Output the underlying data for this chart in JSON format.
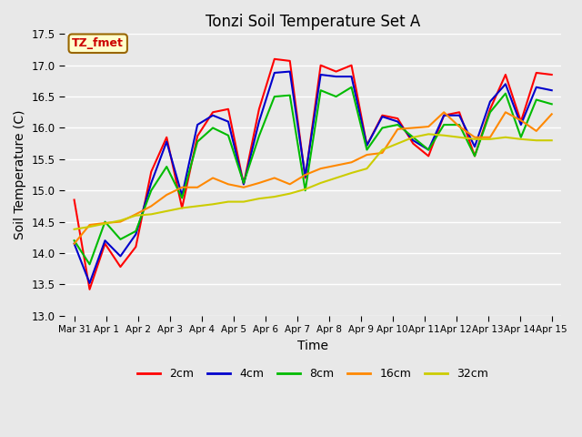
{
  "title": "Tonzi Soil Temperature Set A",
  "xlabel": "Time",
  "ylabel": "Soil Temperature (C)",
  "ylim": [
    13.0,
    17.5
  ],
  "annotation_text": "TZ_fmet",
  "annotation_bg": "#ffffcc",
  "annotation_border": "#996600",
  "annotation_text_color": "#cc0000",
  "bg_color": "#e8e8e8",
  "grid_color": "white",
  "series_order": [
    "2cm",
    "4cm",
    "8cm",
    "16cm",
    "32cm"
  ],
  "series": {
    "2cm": {
      "color": "#ff0000",
      "lw": 1.5
    },
    "4cm": {
      "color": "#0000cc",
      "lw": 1.5
    },
    "8cm": {
      "color": "#00bb00",
      "lw": 1.5
    },
    "16cm": {
      "color": "#ff8800",
      "lw": 1.5
    },
    "32cm": {
      "color": "#cccc00",
      "lw": 1.5
    }
  },
  "x_tick_labels": [
    "Mar 31",
    "Apr 1",
    "Apr 2",
    "Apr 3",
    "Apr 4",
    "Apr 5",
    "Apr 6",
    "Apr 7",
    "Apr 8",
    "Apr 9",
    "Apr 10",
    "Apr 11",
    "Apr 12",
    "Apr 13",
    "Apr 14",
    "Apr 15"
  ],
  "data_2cm": [
    14.85,
    13.42,
    14.15,
    13.78,
    14.1,
    15.3,
    15.85,
    14.72,
    15.87,
    16.25,
    16.3,
    15.1,
    16.3,
    17.1,
    17.07,
    15.2,
    17.0,
    16.9,
    17.0,
    15.72,
    16.2,
    16.15,
    15.75,
    15.55,
    16.2,
    16.25,
    15.55,
    16.3,
    16.85,
    16.1,
    16.88,
    16.85
  ],
  "data_4cm": [
    14.15,
    13.52,
    14.2,
    13.95,
    14.3,
    15.12,
    15.78,
    14.92,
    16.05,
    16.2,
    16.1,
    15.1,
    16.1,
    16.88,
    16.9,
    15.22,
    16.85,
    16.82,
    16.82,
    15.72,
    16.18,
    16.1,
    15.8,
    15.65,
    16.2,
    16.2,
    15.7,
    16.42,
    16.7,
    16.05,
    16.65,
    16.6
  ],
  "data_8cm": [
    14.2,
    13.82,
    14.5,
    14.22,
    14.35,
    15.0,
    15.38,
    14.88,
    15.78,
    16.0,
    15.88,
    15.12,
    15.87,
    16.5,
    16.52,
    15.0,
    16.6,
    16.5,
    16.65,
    15.65,
    16.0,
    16.05,
    15.85,
    15.65,
    16.05,
    16.05,
    15.55,
    16.25,
    16.55,
    15.85,
    16.45,
    16.38
  ],
  "data_16cm": [
    14.15,
    14.45,
    14.48,
    14.5,
    14.62,
    14.75,
    14.93,
    15.05,
    15.05,
    15.2,
    15.1,
    15.05,
    15.12,
    15.2,
    15.1,
    15.25,
    15.35,
    15.4,
    15.45,
    15.57,
    15.6,
    15.98,
    16.0,
    16.02,
    16.25,
    16.02,
    15.85,
    15.85,
    16.25,
    16.12,
    15.95,
    16.22
  ],
  "data_32cm": [
    14.38,
    14.42,
    14.47,
    14.52,
    14.6,
    14.62,
    14.67,
    14.72,
    14.75,
    14.78,
    14.82,
    14.82,
    14.87,
    14.9,
    14.95,
    15.02,
    15.12,
    15.2,
    15.28,
    15.35,
    15.65,
    15.75,
    15.85,
    15.9,
    15.88,
    15.85,
    15.82,
    15.82,
    15.85,
    15.82,
    15.8,
    15.8
  ]
}
